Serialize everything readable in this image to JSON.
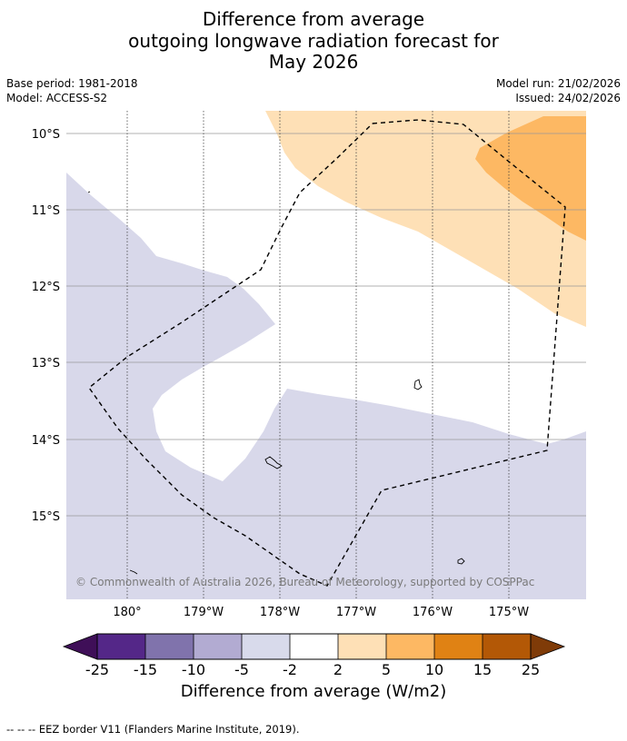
{
  "title": {
    "line1": "Difference from average",
    "line2": "outgoing longwave radiation forecast for",
    "line3": "May 2026"
  },
  "meta": {
    "base_period": "Base period: 1981-2018",
    "model": "Model: ACCESS-S2",
    "model_run": "Model run: 21/02/2026",
    "issued": "Issued: 24/02/2026"
  },
  "map": {
    "lat_labels": [
      "10°S",
      "11°S",
      "12°S",
      "13°S",
      "14°S",
      "15°S"
    ],
    "lon_labels": [
      "180°",
      "179°W",
      "178°W",
      "177°W",
      "176°W",
      "175°W"
    ],
    "copyright": "© Commonwealth of Australia 2026, Bureau of Meteorology, supported by COSPPac",
    "colors": {
      "neg_2_5": "#d8d8ea",
      "pos_2_5": "#fee0b6",
      "pos_5_10": "#fdb863",
      "grid": "#999999"
    }
  },
  "colorbar": {
    "ticks": [
      "-25",
      "-15",
      "-10",
      "-5",
      "-2",
      "2",
      "5",
      "10",
      "15",
      "25"
    ],
    "colors": [
      "#3f0f58",
      "#542788",
      "#8073ac",
      "#b2abd2",
      "#d8daeb",
      "#ffffff",
      "#fee0b6",
      "#fdb863",
      "#e08214",
      "#b35806",
      "#7f3b08"
    ],
    "label": "Difference from average (W/m2)"
  },
  "footer": {
    "legend": "--  --  -- EEZ border V11 (Flanders Marine Institute, 2019)."
  }
}
